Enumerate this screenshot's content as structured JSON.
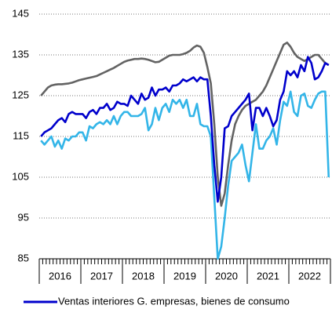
{
  "chart_data": {
    "type": "line",
    "year_labels": [
      "2016",
      "2017",
      "2018",
      "2019",
      "2020",
      "2021",
      "2022"
    ],
    "ylim": [
      85,
      145
    ],
    "yticks": [
      85,
      95,
      105,
      115,
      125,
      135,
      145
    ],
    "grid": true,
    "series": [
      {
        "color": "#33b5e8",
        "values": [
          114,
          113,
          114,
          115,
          112.5,
          114,
          112,
          114.5,
          114,
          115,
          115,
          116,
          116,
          114,
          117.5,
          117,
          118,
          118.5,
          118,
          119,
          118,
          120,
          118,
          120,
          121,
          121,
          120,
          120,
          120,
          120.5,
          122,
          116.5,
          118,
          122,
          119,
          122,
          123,
          121,
          124,
          123,
          124,
          122,
          124,
          120,
          120,
          123,
          118,
          117.5,
          117.5,
          115,
          100,
          85,
          88,
          95,
          103,
          109,
          110,
          111,
          113,
          108,
          104,
          111,
          118,
          112,
          112,
          114,
          115,
          117,
          113,
          119,
          123.5,
          122.5,
          126,
          121,
          120,
          125,
          125.5,
          122.5,
          122,
          124,
          125.5,
          126,
          126,
          105
        ]
      },
      {
        "color": "#636363",
        "values": [
          125,
          126,
          127,
          127.5,
          127.7,
          127.8,
          127.8,
          127.9,
          128,
          128.2,
          128.5,
          128.8,
          129,
          129.2,
          129.4,
          129.6,
          129.8,
          130.2,
          130.6,
          131,
          131.4,
          131.8,
          132.3,
          132.8,
          133.3,
          133.6,
          133.8,
          134,
          134,
          134.1,
          134,
          133.8,
          133.5,
          133.2,
          133.3,
          133.8,
          134.3,
          134.8,
          135,
          135,
          135,
          135.2,
          135.5,
          136,
          136.8,
          137.3,
          137,
          135.5,
          132,
          128,
          118,
          105,
          98,
          101,
          108,
          114,
          118,
          120,
          121.5,
          122.5,
          123,
          123.5,
          124,
          125,
          126,
          127.5,
          129.5,
          131.5,
          133.5,
          135.5,
          137.5,
          138,
          137,
          135.5,
          134.5,
          134,
          133.5,
          134,
          134.5,
          135,
          135,
          134,
          133,
          132.5
        ]
      },
      {
        "name": "Ventas interiores G. empresas, bienes de consumo",
        "color": "#0000cc",
        "values": [
          115,
          116,
          116.5,
          117,
          118,
          119,
          119.5,
          118.5,
          120.5,
          121,
          120.5,
          120.5,
          120.5,
          119.5,
          121,
          121.5,
          120.5,
          122,
          122,
          123,
          121.5,
          122,
          123.5,
          123,
          123,
          122.5,
          125,
          124,
          123,
          125.5,
          124,
          124.5,
          127,
          125,
          126.5,
          126.5,
          127,
          126,
          127.5,
          127.5,
          128,
          129,
          128.5,
          129,
          129.5,
          128.5,
          129.5,
          129,
          129,
          120,
          108,
          99,
          105,
          117,
          117.5,
          120,
          121,
          122,
          123,
          124,
          125.5,
          116.5,
          122,
          122,
          120,
          122,
          120,
          117.5,
          119,
          124,
          126,
          131,
          130,
          131,
          129.5,
          132.5,
          131,
          134.5,
          133,
          129,
          129.5,
          131,
          133,
          132.5
        ]
      }
    ]
  }
}
